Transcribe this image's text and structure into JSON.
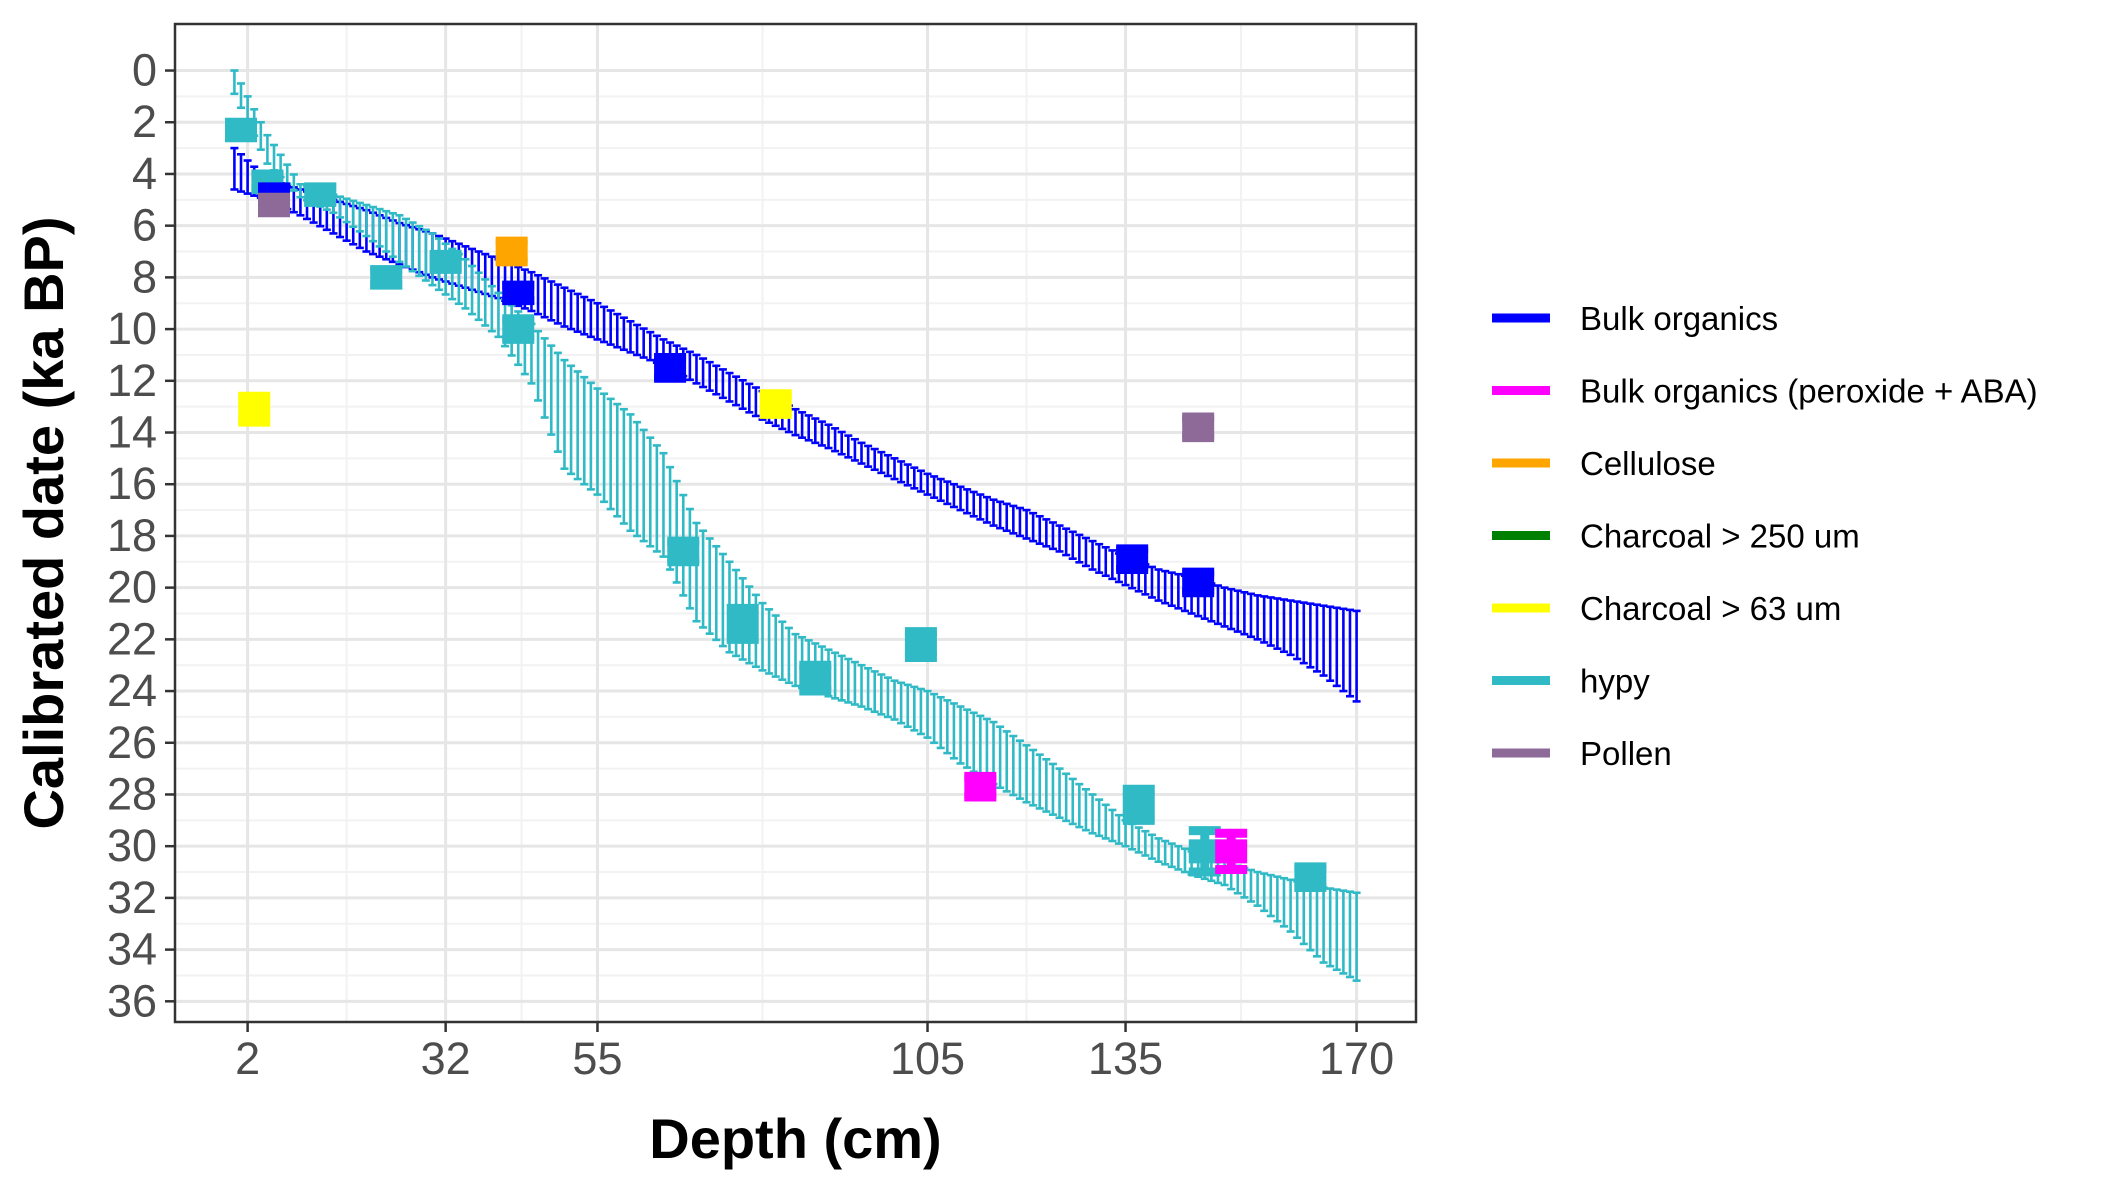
{
  "chart_data": {
    "type": "scatter",
    "xlabel": "Depth (cm)",
    "ylabel": "Calibrated date (ka BP)",
    "x_ticks": [
      2,
      32,
      55,
      105,
      135,
      170
    ],
    "x_tick_labels": [
      "2",
      "32",
      "55",
      "105",
      "135",
      "170"
    ],
    "y_ticks": [
      0,
      2,
      4,
      6,
      8,
      10,
      12,
      14,
      16,
      18,
      20,
      22,
      24,
      26,
      28,
      30,
      32,
      34,
      36
    ],
    "y_tick_labels": [
      "0",
      "2",
      "4",
      "6",
      "8",
      "10",
      "12",
      "14",
      "16",
      "18",
      "20",
      "22",
      "24",
      "26",
      "28",
      "30",
      "32",
      "34",
      "36"
    ],
    "xlim": [
      -9,
      179
    ],
    "ylim": [
      36.8,
      -1.8
    ],
    "y_reversed": true,
    "grid": true,
    "legend_position": "right",
    "legend": [
      {
        "name": "Bulk organics",
        "color": "#0000ff"
      },
      {
        "name": "Bulk organics (peroxide + ABA)",
        "color": "#ff00ff"
      },
      {
        "name": "Cellulose",
        "color": "#ffa500"
      },
      {
        "name": "Charcoal > 250 um",
        "color": "#008000"
      },
      {
        "name": "Charcoal > 63 um",
        "color": "#ffff00"
      },
      {
        "name": "hypy",
        "color": "#2fbac6"
      },
      {
        "name": "Pollen",
        "color": "#8e6a99"
      }
    ],
    "age_models": [
      {
        "series": "Bulk organics",
        "color": "#0000ff",
        "depth_range": [
          0,
          170
        ],
        "upper": [
          [
            0,
            3.0
          ],
          [
            5,
            4.2
          ],
          [
            10,
            4.6
          ],
          [
            15,
            5.0
          ],
          [
            20,
            5.4
          ],
          [
            25,
            5.9
          ],
          [
            30,
            6.3
          ],
          [
            35,
            6.8
          ],
          [
            40,
            7.3
          ],
          [
            45,
            7.8
          ],
          [
            50,
            8.4
          ],
          [
            55,
            9.0
          ],
          [
            60,
            9.7
          ],
          [
            65,
            10.4
          ],
          [
            70,
            11.0
          ],
          [
            75,
            11.7
          ],
          [
            80,
            12.4
          ],
          [
            85,
            13.1
          ],
          [
            90,
            13.7
          ],
          [
            95,
            14.4
          ],
          [
            100,
            15.0
          ],
          [
            105,
            15.6
          ],
          [
            110,
            16.1
          ],
          [
            115,
            16.6
          ],
          [
            120,
            17.0
          ],
          [
            125,
            17.6
          ],
          [
            130,
            18.2
          ],
          [
            135,
            18.8
          ],
          [
            140,
            19.3
          ],
          [
            145,
            19.6
          ],
          [
            150,
            20.0
          ],
          [
            155,
            20.3
          ],
          [
            160,
            20.5
          ],
          [
            165,
            20.7
          ],
          [
            170,
            20.9
          ]
        ],
        "lower": [
          [
            0,
            4.6
          ],
          [
            5,
            5.0
          ],
          [
            10,
            5.6
          ],
          [
            15,
            6.3
          ],
          [
            20,
            7.0
          ],
          [
            25,
            7.5
          ],
          [
            30,
            8.0
          ],
          [
            35,
            8.4
          ],
          [
            40,
            8.8
          ],
          [
            45,
            9.3
          ],
          [
            50,
            9.9
          ],
          [
            55,
            10.4
          ],
          [
            60,
            10.9
          ],
          [
            65,
            11.4
          ],
          [
            70,
            12.1
          ],
          [
            75,
            12.8
          ],
          [
            80,
            13.5
          ],
          [
            85,
            14.1
          ],
          [
            90,
            14.6
          ],
          [
            95,
            15.2
          ],
          [
            100,
            15.8
          ],
          [
            105,
            16.4
          ],
          [
            110,
            17.0
          ],
          [
            115,
            17.6
          ],
          [
            120,
            18.1
          ],
          [
            125,
            18.6
          ],
          [
            130,
            19.3
          ],
          [
            135,
            19.9
          ],
          [
            140,
            20.5
          ],
          [
            145,
            21.0
          ],
          [
            150,
            21.5
          ],
          [
            155,
            22.0
          ],
          [
            160,
            22.6
          ],
          [
            165,
            23.4
          ],
          [
            170,
            24.4
          ]
        ]
      },
      {
        "series": "hypy",
        "color": "#2fbac6",
        "depth_range": [
          0,
          170
        ],
        "upper": [
          [
            0,
            0.0
          ],
          [
            5,
            2.5
          ],
          [
            10,
            4.4
          ],
          [
            15,
            4.8
          ],
          [
            20,
            5.2
          ],
          [
            25,
            5.6
          ],
          [
            30,
            6.3
          ],
          [
            35,
            7.3
          ],
          [
            40,
            8.6
          ],
          [
            45,
            9.8
          ],
          [
            50,
            11.2
          ],
          [
            55,
            12.3
          ],
          [
            60,
            13.3
          ],
          [
            65,
            14.8
          ],
          [
            70,
            17.5
          ],
          [
            75,
            19.0
          ],
          [
            80,
            20.6
          ],
          [
            85,
            21.8
          ],
          [
            90,
            22.4
          ],
          [
            95,
            23.0
          ],
          [
            100,
            23.6
          ],
          [
            105,
            24.0
          ],
          [
            110,
            24.6
          ],
          [
            115,
            25.2
          ],
          [
            120,
            26.1
          ],
          [
            125,
            27.0
          ],
          [
            130,
            28.0
          ],
          [
            135,
            29.0
          ],
          [
            140,
            29.7
          ],
          [
            145,
            30.2
          ],
          [
            150,
            30.6
          ],
          [
            155,
            31.0
          ],
          [
            160,
            31.3
          ],
          [
            165,
            31.6
          ],
          [
            170,
            31.8
          ]
        ],
        "lower": [
          [
            0,
            0.9
          ],
          [
            5,
            3.6
          ],
          [
            10,
            4.9
          ],
          [
            15,
            5.5
          ],
          [
            20,
            6.4
          ],
          [
            25,
            7.4
          ],
          [
            30,
            8.3
          ],
          [
            35,
            9.2
          ],
          [
            40,
            10.3
          ],
          [
            45,
            12.1
          ],
          [
            50,
            15.4
          ],
          [
            55,
            16.4
          ],
          [
            60,
            17.8
          ],
          [
            65,
            18.8
          ],
          [
            70,
            21.3
          ],
          [
            75,
            22.5
          ],
          [
            80,
            23.2
          ],
          [
            85,
            23.8
          ],
          [
            90,
            24.2
          ],
          [
            95,
            24.6
          ],
          [
            100,
            25.1
          ],
          [
            105,
            25.8
          ],
          [
            110,
            26.8
          ],
          [
            115,
            27.6
          ],
          [
            120,
            28.3
          ],
          [
            125,
            28.9
          ],
          [
            130,
            29.5
          ],
          [
            135,
            30.0
          ],
          [
            140,
            30.6
          ],
          [
            145,
            31.1
          ],
          [
            150,
            31.5
          ],
          [
            155,
            32.3
          ],
          [
            160,
            33.3
          ],
          [
            165,
            34.5
          ],
          [
            170,
            35.2
          ]
        ]
      }
    ],
    "dates": [
      {
        "series": "hypy",
        "x": 1,
        "y": 2.3,
        "ymin": 2.0,
        "ymax": 2.6
      },
      {
        "series": "hypy",
        "x": 5,
        "y": 4.3,
        "ymin": 4.0,
        "ymax": 4.6
      },
      {
        "series": "hypy",
        "x": 13,
        "y": 4.8,
        "ymin": 4.5,
        "ymax": 5.1
      },
      {
        "series": "hypy",
        "x": 23,
        "y": 8.0,
        "ymin": 7.7,
        "ymax": 8.3
      },
      {
        "series": "hypy",
        "x": 32,
        "y": 7.4,
        "ymin": 7.2,
        "ymax": 7.6
      },
      {
        "series": "hypy",
        "x": 43,
        "y": 10.0,
        "ymin": 9.6,
        "ymax": 10.4
      },
      {
        "series": "hypy",
        "x": 68,
        "y": 18.6,
        "ymin": 18.2,
        "ymax": 19.0
      },
      {
        "series": "hypy",
        "x": 77,
        "y": 21.4,
        "ymin": 20.8,
        "ymax": 22.0
      },
      {
        "series": "hypy",
        "x": 88,
        "y": 23.5,
        "ymin": 23.0,
        "ymax": 24.0
      },
      {
        "series": "hypy",
        "x": 104,
        "y": 22.2,
        "ymin": 21.7,
        "ymax": 22.7
      },
      {
        "series": "hypy",
        "x": 137,
        "y": 28.4,
        "ymin": 27.8,
        "ymax": 29.0
      },
      {
        "series": "hypy",
        "x": 147,
        "y": 30.2,
        "ymin": 29.4,
        "ymax": 31.0
      },
      {
        "series": "hypy",
        "x": 163,
        "y": 31.2,
        "ymin": 30.8,
        "ymax": 31.6
      },
      {
        "series": "Bulk organics",
        "x": 6,
        "y": 4.8,
        "ymin": 4.5,
        "ymax": 5.1
      },
      {
        "series": "Bulk organics",
        "x": 43,
        "y": 8.6,
        "ymin": 8.3,
        "ymax": 8.9
      },
      {
        "series": "Bulk organics",
        "x": 66,
        "y": 11.5,
        "ymin": 11.1,
        "ymax": 11.9
      },
      {
        "series": "Bulk organics",
        "x": 136,
        "y": 18.9,
        "ymin": 18.5,
        "ymax": 19.3
      },
      {
        "series": "Bulk organics",
        "x": 146,
        "y": 19.8,
        "ymin": 19.4,
        "ymax": 20.2
      },
      {
        "series": "Bulk organics (peroxide + ABA)",
        "x": 113,
        "y": 27.7,
        "ymin": 27.3,
        "ymax": 28.1
      },
      {
        "series": "Bulk organics (peroxide + ABA)",
        "x": 151,
        "y": 30.2,
        "ymin": 29.5,
        "ymax": 30.9
      },
      {
        "series": "Cellulose",
        "x": 42,
        "y": 7.0,
        "ymin": 6.6,
        "ymax": 7.4
      },
      {
        "series": "Charcoal > 63 um",
        "x": 3,
        "y": 13.1,
        "ymin": 12.6,
        "ymax": 13.6
      },
      {
        "series": "Charcoal > 63 um",
        "x": 82,
        "y": 12.9,
        "ymin": 12.5,
        "ymax": 13.3
      },
      {
        "series": "Pollen",
        "x": 6,
        "y": 5.2,
        "ymin": 4.9,
        "ymax": 5.5
      },
      {
        "series": "Pollen",
        "x": 146,
        "y": 13.8,
        "ymin": 13.4,
        "ymax": 14.2
      }
    ]
  }
}
